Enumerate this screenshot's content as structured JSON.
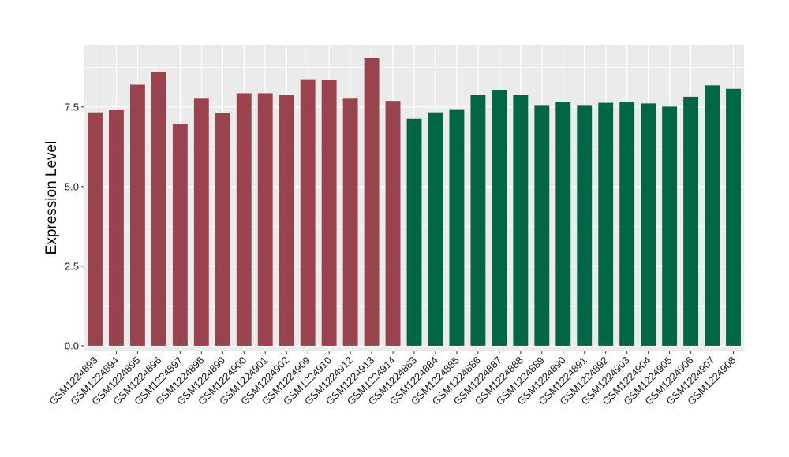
{
  "chart_data": {
    "type": "bar",
    "title": "",
    "xlabel": "",
    "ylabel": "Expression Level",
    "ylim": [
      -0.15,
      9.45
    ],
    "yticks": [
      0.0,
      2.5,
      5.0,
      7.5
    ],
    "ytick_labels": [
      "0.0",
      "2.5",
      "5.0",
      "7.5"
    ],
    "grid": true,
    "legend": "none",
    "categories": [
      "GSM1224893",
      "GSM1224894",
      "GSM1224895",
      "GSM1224896",
      "GSM1224897",
      "GSM1224898",
      "GSM1224899",
      "GSM1224900",
      "GSM1224901",
      "GSM1224902",
      "GSM1224909",
      "GSM1224910",
      "GSM1224912",
      "GSM1224913",
      "GSM1224914",
      "GSM1224883",
      "GSM1224884",
      "GSM1224885",
      "GSM1224886",
      "GSM1224887",
      "GSM1224888",
      "GSM1224889",
      "GSM1224890",
      "GSM1224891",
      "GSM1224892",
      "GSM1224903",
      "GSM1224904",
      "GSM1224905",
      "GSM1224906",
      "GSM1224907",
      "GSM1224908"
    ],
    "values": [
      7.33,
      7.4,
      8.2,
      8.61,
      6.97,
      7.76,
      7.32,
      7.93,
      7.93,
      7.89,
      8.37,
      8.34,
      7.76,
      9.04,
      7.69,
      7.13,
      7.33,
      7.43,
      7.89,
      8.04,
      7.88,
      7.56,
      7.66,
      7.56,
      7.63,
      7.66,
      7.61,
      7.51,
      7.82,
      8.18,
      8.07
    ],
    "groups": [
      0,
      0,
      0,
      0,
      0,
      0,
      0,
      0,
      0,
      0,
      0,
      0,
      0,
      0,
      0,
      1,
      1,
      1,
      1,
      1,
      1,
      1,
      1,
      1,
      1,
      1,
      1,
      1,
      1,
      1,
      1
    ],
    "group_colors": [
      "#99434f",
      "#006645"
    ],
    "panel_background": "#ebebeb",
    "gridline_color": "#ffffff"
  }
}
